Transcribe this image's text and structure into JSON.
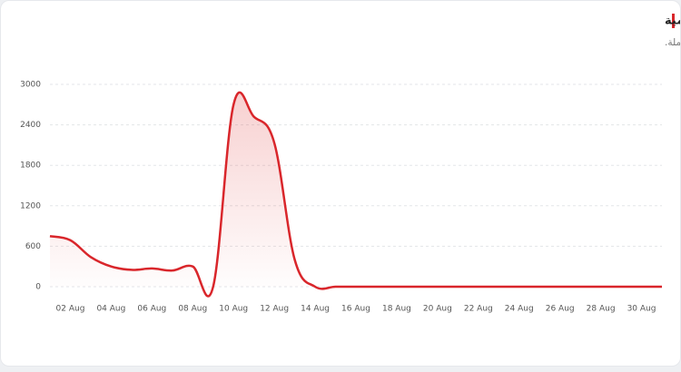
{
  "chart_data": {
    "type": "line",
    "title": "منحنى الزيارات اليومية",
    "subtitle": "عدد الزيارات المسجلة في كل يوم خلال مدة الحملة.",
    "categories": [
      null,
      "02 Aug",
      null,
      "04 Aug",
      null,
      "06 Aug",
      null,
      "08 Aug",
      null,
      "10 Aug",
      null,
      "12 Aug",
      null,
      "14 Aug",
      null,
      "16 Aug",
      null,
      "18 Aug",
      null,
      "20 Aug",
      null,
      "22 Aug",
      null,
      "24 Aug",
      null,
      "26 Aug",
      null,
      "28 Aug",
      null,
      "30 Aug",
      null
    ],
    "series": [
      {
        "color": "#d9262b",
        "values": [
          750,
          690,
          440,
          300,
          250,
          270,
          240,
          300,
          0,
          2700,
          2520,
          2130,
          400,
          0,
          0,
          0,
          0,
          0,
          0,
          0,
          0,
          0,
          0,
          0,
          0,
          0,
          0,
          0,
          0,
          0,
          0
        ]
      }
    ],
    "ylim": [
      0,
      3000
    ],
    "yticks": [
      0,
      600,
      1200,
      1800,
      2400,
      3000
    ],
    "grid": true
  }
}
